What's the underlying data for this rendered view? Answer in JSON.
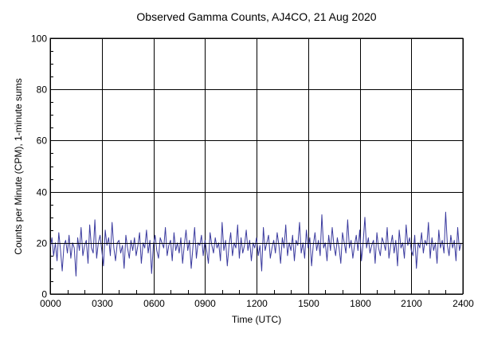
{
  "chart_data": {
    "type": "line",
    "title": "Observed Gamma Counts, AJ4CO, 21 Aug 2020",
    "xlabel": "Time (UTC)",
    "ylabel": "Counts per Minute (CPM), 1-minute sums",
    "xlim": [
      0,
      24
    ],
    "ylim": [
      0,
      100
    ],
    "x_ticks": [
      {
        "value": 0,
        "label": "0000"
      },
      {
        "value": 3,
        "label": "0300"
      },
      {
        "value": 6,
        "label": "0600"
      },
      {
        "value": 9,
        "label": "0900"
      },
      {
        "value": 12,
        "label": "1200"
      },
      {
        "value": 15,
        "label": "1500"
      },
      {
        "value": 18,
        "label": "1800"
      },
      {
        "value": 21,
        "label": "2100"
      },
      {
        "value": 24,
        "label": "2400"
      }
    ],
    "y_ticks": [
      {
        "value": 0,
        "label": "0"
      },
      {
        "value": 20,
        "label": "20"
      },
      {
        "value": 40,
        "label": "40"
      },
      {
        "value": 60,
        "label": "60"
      },
      {
        "value": 80,
        "label": "80"
      },
      {
        "value": 100,
        "label": "100"
      }
    ],
    "grid": true,
    "line_color": "#3a3a9e",
    "series": [
      {
        "name": "CPM",
        "sample_interval_hours": 0.1,
        "values": [
          18,
          22,
          15,
          20,
          13,
          24,
          17,
          9,
          19,
          21,
          16,
          23,
          14,
          20,
          18,
          7,
          22,
          17,
          26,
          15,
          19,
          21,
          12,
          27,
          18,
          16,
          29,
          14,
          20,
          23,
          17,
          11,
          25,
          19,
          22,
          15,
          28,
          18,
          13,
          20,
          21,
          16,
          19,
          10,
          23,
          18,
          14,
          21,
          17,
          22,
          15,
          19,
          24,
          12,
          20,
          18,
          25,
          16,
          21,
          8,
          19,
          23,
          17,
          14,
          22,
          20,
          18,
          26,
          15,
          19,
          21,
          13,
          24,
          17,
          20,
          16,
          22,
          12,
          19,
          25,
          17,
          21,
          10,
          18,
          26,
          14,
          20,
          19,
          23,
          15,
          21,
          17,
          12,
          24,
          19,
          16,
          22,
          18,
          20,
          13,
          28,
          17,
          21,
          11,
          19,
          24,
          15,
          20,
          18,
          27,
          14,
          22,
          16,
          19,
          25,
          17,
          21,
          13,
          20,
          18,
          22,
          15,
          19,
          9,
          26,
          17,
          20,
          23,
          14,
          18,
          21,
          16,
          24,
          19,
          12,
          22,
          18,
          27,
          15,
          20,
          17,
          23,
          13,
          21,
          19,
          28,
          16,
          20,
          14,
          25,
          18,
          22,
          11,
          19,
          24,
          17,
          21,
          15,
          31,
          18,
          20,
          13,
          23,
          17,
          26,
          19,
          15,
          22,
          18,
          12,
          24,
          20,
          16,
          29,
          18,
          21,
          14,
          19,
          23,
          17,
          25,
          13,
          20,
          30,
          18,
          22,
          16,
          19,
          21,
          12,
          24,
          18,
          15,
          22,
          20,
          17,
          26,
          14,
          19,
          23,
          16,
          21,
          11,
          25,
          18,
          20,
          14,
          27,
          19,
          22,
          17,
          15,
          23,
          10,
          20,
          18,
          24,
          16,
          21,
          19,
          28,
          14,
          22,
          17,
          20,
          12,
          25,
          18,
          21,
          16,
          32,
          19,
          15,
          23,
          18,
          21,
          13,
          26,
          17,
          20
        ]
      }
    ]
  }
}
